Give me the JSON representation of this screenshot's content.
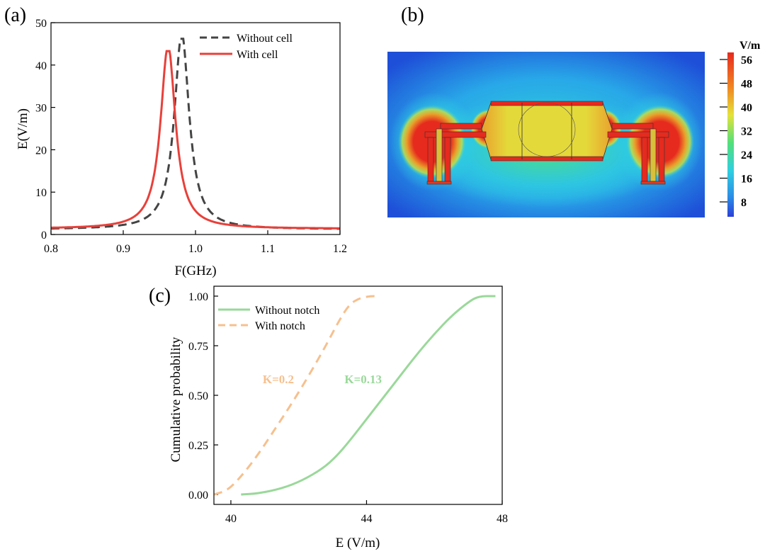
{
  "panels": {
    "a": {
      "label": "(a)"
    },
    "b": {
      "label": "(b)"
    },
    "c": {
      "label": "(c)"
    }
  },
  "heatmap": {
    "unit": "V/m",
    "ticks": [
      "56",
      "48",
      "40",
      "32",
      "24",
      "16",
      "8"
    ],
    "colors": {
      "low": "#1e4fd8",
      "mid": "#2fcfe0",
      "green": "#52e07a",
      "yellow": "#e4e23a",
      "high": "#e62a1e"
    }
  },
  "chart_data": [
    {
      "type": "line",
      "panel": "a",
      "title": "",
      "xlabel": "F(GHz)",
      "ylabel": "E(V/m)",
      "xlim": [
        0.8,
        1.2
      ],
      "ylim": [
        0,
        50
      ],
      "xticks": [
        "0.8",
        "0.9",
        "1.0",
        "1.1",
        "1.2"
      ],
      "yticks": [
        "0",
        "10",
        "20",
        "30",
        "40",
        "50"
      ],
      "legend": "top-right",
      "series": [
        {
          "name": "Without cell",
          "color": "#444444",
          "dash": "dashed",
          "f0": 0.981,
          "peak": 46.2,
          "width": 0.0125,
          "base": 0.8
        },
        {
          "name": "With cell",
          "color": "#e8403a",
          "dash": "solid",
          "f0": 0.962,
          "peak": 43.3,
          "width": 0.0125,
          "base": 0.9
        }
      ]
    },
    {
      "type": "line",
      "panel": "c",
      "title": "",
      "xlabel": "E (V/m)",
      "ylabel": "Cumulative probability",
      "xlim": [
        39.5,
        48
      ],
      "ylim": [
        -0.05,
        1.05
      ],
      "xticks": [
        "40",
        "44",
        "48"
      ],
      "yticks": [
        "0.00",
        "0.25",
        "0.50",
        "0.75",
        "1.00"
      ],
      "legend": "top-left",
      "annotations": [
        {
          "text": "K=0.2",
          "x": 41.4,
          "y": 0.56,
          "color": "#f6c08e"
        },
        {
          "text": "K=0.13",
          "x": 43.9,
          "y": 0.56,
          "color": "#9ad89a"
        }
      ],
      "series": [
        {
          "name": "Without notch",
          "color": "#9ad89a",
          "dash": "solid",
          "x": [
            40.3,
            40.8,
            41.5,
            42.1,
            42.7,
            43.1,
            43.5,
            44.0,
            44.5,
            45.0,
            45.5,
            46.0,
            46.5,
            47.0,
            47.3,
            47.8
          ],
          "y": [
            0.0,
            0.005,
            0.03,
            0.07,
            0.13,
            0.19,
            0.27,
            0.38,
            0.49,
            0.6,
            0.71,
            0.81,
            0.9,
            0.97,
            1.0,
            1.0
          ]
        },
        {
          "name": "With notch",
          "color": "#f6c08e",
          "dash": "dashed",
          "x": [
            39.5,
            39.9,
            40.3,
            40.8,
            41.3,
            41.8,
            42.3,
            42.8,
            43.2,
            43.5,
            43.8,
            44.1,
            44.4
          ],
          "y": [
            0.0,
            0.02,
            0.09,
            0.2,
            0.33,
            0.46,
            0.6,
            0.75,
            0.88,
            0.96,
            0.99,
            1.0,
            1.0
          ]
        }
      ]
    }
  ]
}
